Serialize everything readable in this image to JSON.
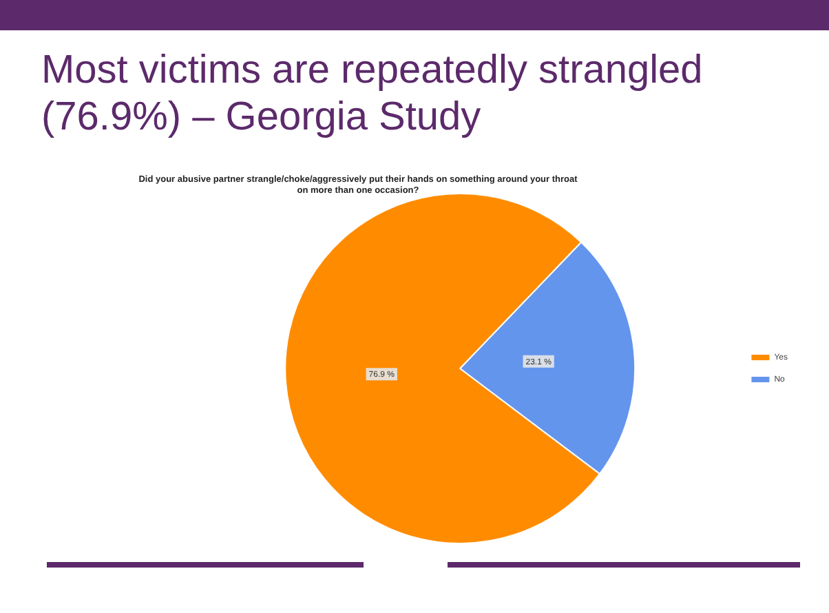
{
  "chart_data": {
    "type": "pie",
    "title": "Most victims are repeatedly strangled (76.9%) – Georgia Study",
    "subtitle": "Did your abusive partner strangle/choke/aggressively put their hands on something around your throat on more than one occasion?",
    "categories": [
      "Yes",
      "No"
    ],
    "values": [
      76.9,
      23.1
    ],
    "colors": [
      "#ff8c00",
      "#6495ed"
    ],
    "value_labels": [
      "76.9 %",
      "23.1 %"
    ],
    "legend": "right"
  }
}
